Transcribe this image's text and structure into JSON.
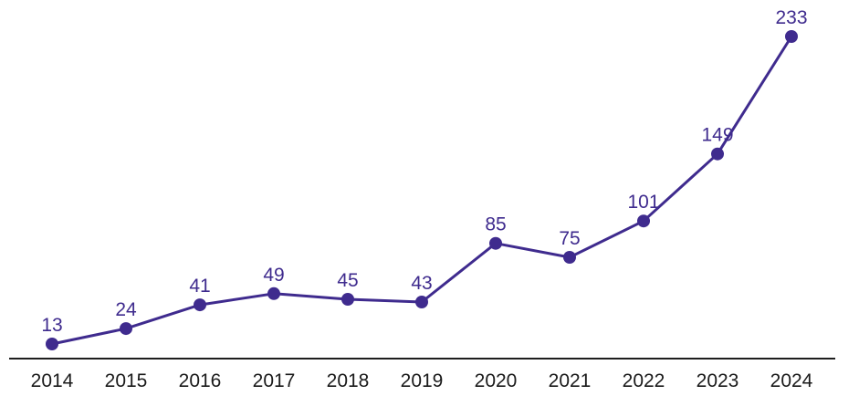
{
  "chart_data": {
    "type": "line",
    "categories": [
      "2014",
      "2015",
      "2016",
      "2017",
      "2018",
      "2019",
      "2020",
      "2021",
      "2022",
      "2023",
      "2024"
    ],
    "values": [
      13,
      24,
      41,
      49,
      45,
      43,
      85,
      75,
      101,
      149,
      233
    ],
    "title": "",
    "xlabel": "",
    "ylabel": "",
    "ylim": [
      0,
      250
    ],
    "grid": false,
    "legend": "none",
    "point_labels_visible": true,
    "colors": {
      "line": "#3F2B8E",
      "point": "#3F2B8E",
      "value_label": "#3F2B8E",
      "tick_label": "#1B1B1B",
      "axis_line": "#1E1E1E",
      "background": "#FFFFFF"
    }
  }
}
